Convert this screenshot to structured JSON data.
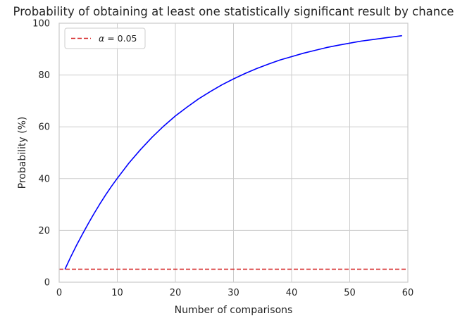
{
  "chart_data": {
    "type": "line",
    "title": "Probability of obtaining at least one statistically significant result by chance",
    "xlabel": "Number of comparisons",
    "ylabel": "Probability (%)",
    "xlim": [
      0,
      60
    ],
    "ylim": [
      0,
      100
    ],
    "xticks": [
      "0",
      "10",
      "20",
      "30",
      "40",
      "50",
      "60"
    ],
    "yticks": [
      "0",
      "20",
      "40",
      "60",
      "80",
      "100"
    ],
    "grid": true,
    "legend_position": "upper-left",
    "series": [
      {
        "type": "line",
        "color": "#0000ff",
        "x": [
          1,
          2,
          3,
          4,
          5,
          6,
          7,
          8,
          9,
          10,
          12,
          14,
          16,
          18,
          20,
          22,
          24,
          26,
          28,
          30,
          32,
          34,
          36,
          38,
          40,
          42,
          44,
          46,
          48,
          50,
          52,
          54,
          56,
          58,
          59
        ],
        "y": [
          5.0,
          9.8,
          14.3,
          18.5,
          22.6,
          26.5,
          30.2,
          33.7,
          37.0,
          40.1,
          46.0,
          51.2,
          56.0,
          60.3,
          64.2,
          67.6,
          70.8,
          73.6,
          76.2,
          78.5,
          80.6,
          82.5,
          84.2,
          85.8,
          87.1,
          88.4,
          89.5,
          90.6,
          91.5,
          92.3,
          93.1,
          93.7,
          94.3,
          94.9,
          95.2
        ]
      },
      {
        "name": "α = 0.05",
        "type": "hline",
        "style": "dashed",
        "color": "#d62728",
        "y": 5
      }
    ],
    "legend_label_prefix": "α",
    "legend_label_suffix": " = 0.05"
  }
}
